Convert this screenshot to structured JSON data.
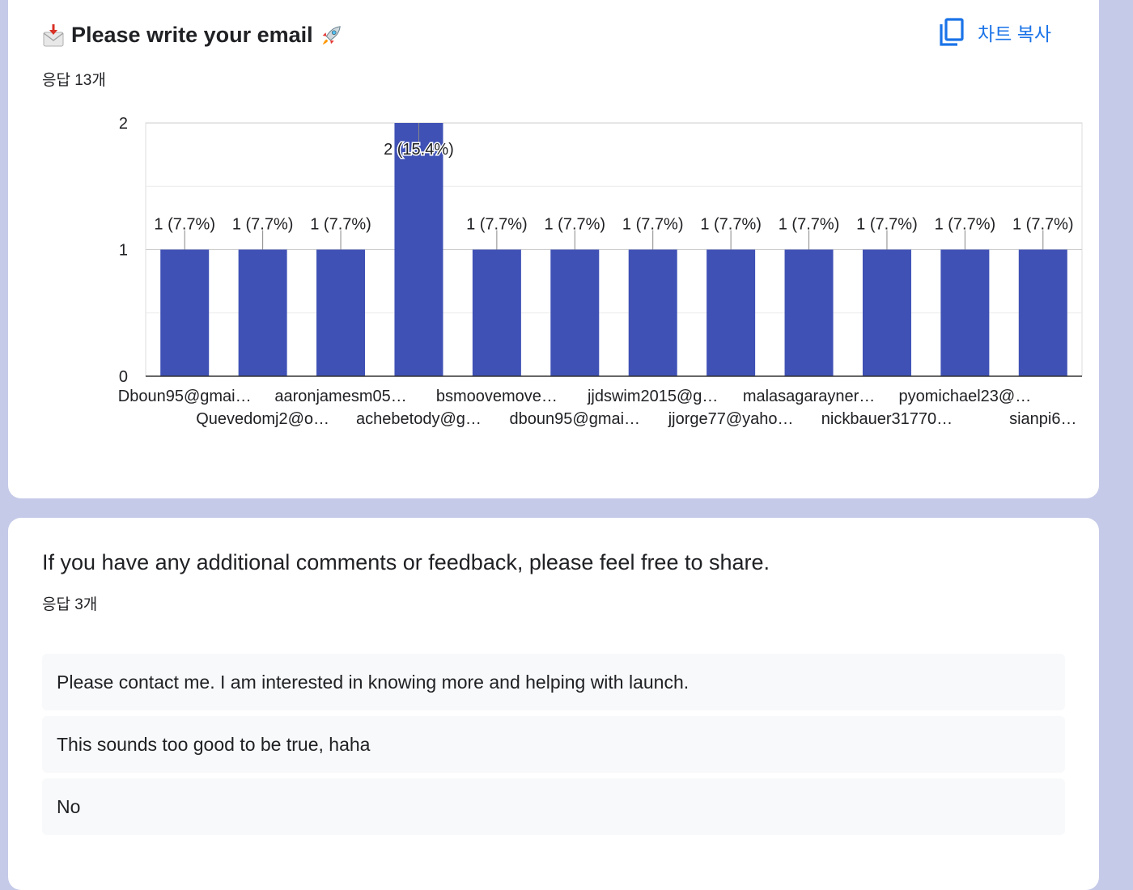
{
  "question1": {
    "title": "Please write your email",
    "lead_icon": "incoming-envelope-icon",
    "trail_icon": "rocket-icon",
    "response_count": "응답 13개",
    "copy_chart_label": "차트 복사",
    "copy_icon": "copy-icon"
  },
  "chart_data": {
    "type": "bar",
    "categories": [
      "Dboun95@gmai…",
      "Quevedomj2@o…",
      "aaronjamesm05…",
      "achebetody@g…",
      "bsmoovemove…",
      "dboun95@gmai…",
      "jjdswim2015@g…",
      "jjorge77@yaho…",
      "malasagarayner…",
      "nickbauer31770…",
      "pyomichael23@…",
      "sianpi6…"
    ],
    "values": [
      1,
      1,
      1,
      2,
      1,
      1,
      1,
      1,
      1,
      1,
      1,
      1
    ],
    "data_labels": [
      "1 (7.7%)",
      "1 (7.7%)",
      "1 (7.7%)",
      "2 (15.4%)",
      "1 (7.7%)",
      "1 (7.7%)",
      "1 (7.7%)",
      "1 (7.7%)",
      "1 (7.7%)",
      "1 (7.7%)",
      "1 (7.7%)",
      "1 (7.7%)"
    ],
    "yticks": [
      "0",
      "1",
      "2"
    ],
    "ylim": [
      0,
      2
    ],
    "grid": true,
    "bar_color": "#3f51b5"
  },
  "question2": {
    "title": "If you have any additional comments or feedback, please feel free to share.",
    "response_count": "응답 3개",
    "answers": [
      "Please contact me. I am interested in knowing more and helping with launch.",
      "This sounds too good to be true, haha",
      "No"
    ]
  }
}
